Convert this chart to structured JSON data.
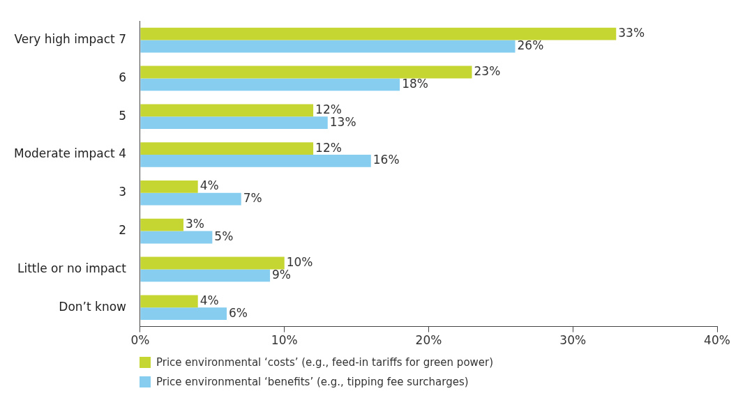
{
  "chart_data": {
    "type": "bar",
    "orientation": "horizontal",
    "categories": [
      "Very high impact 7",
      "6",
      "5",
      "Moderate impact 4",
      "3",
      "2",
      "Little or no impact",
      "Don’t know"
    ],
    "series": [
      {
        "name": "Price environmental ‘costs’ (e.g., feed-in tariffs for green power)",
        "color": "#c5d632",
        "values": [
          33,
          23,
          12,
          12,
          4,
          3,
          10,
          4
        ],
        "value_labels": [
          "33%",
          "23%",
          "12%",
          "12%",
          "4%",
          "3%",
          "10%",
          "4%"
        ]
      },
      {
        "name": "Price environmental ‘benefits’ (e.g., tipping fee surcharges)",
        "color": "#87cdef",
        "values": [
          26,
          18,
          13,
          16,
          7,
          5,
          9,
          6
        ],
        "value_labels": [
          "26%",
          "18%",
          "13%",
          "16%",
          "7%",
          "5%",
          "9%",
          "6%"
        ]
      }
    ],
    "xlim": [
      0,
      40
    ],
    "xticks": [
      {
        "value": 0,
        "label": "0%"
      },
      {
        "value": 10,
        "label": "10%"
      },
      {
        "value": 20,
        "label": "20%"
      },
      {
        "value": 30,
        "label": "30%"
      },
      {
        "value": 40,
        "label": "40%"
      }
    ],
    "grid": false,
    "legend": "bottom"
  }
}
